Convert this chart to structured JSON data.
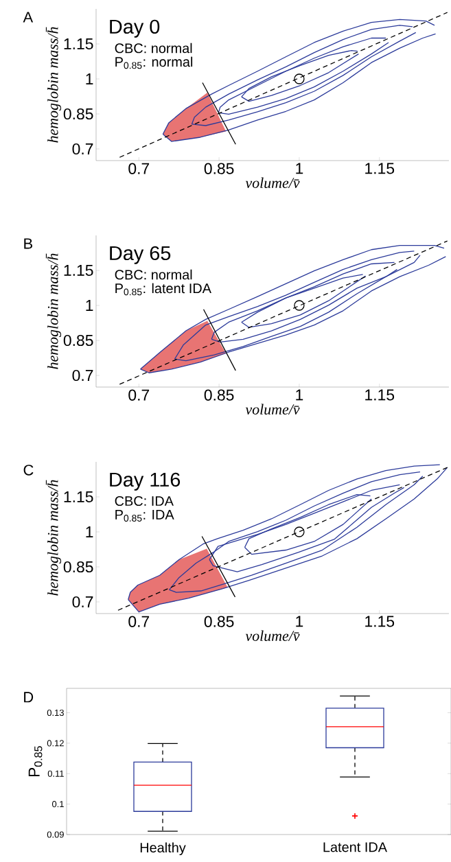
{
  "chart_data": [
    {
      "type": "line",
      "title": "Day 0",
      "xlabel": "volume/v̄",
      "ylabel": "hemoglobin mass/h̄",
      "annotations": [
        "A",
        "CBC: normal",
        "P$_{0.85}$: normal"
      ],
      "xlim": [
        0.62,
        1.28
      ],
      "ylim": [
        0.65,
        1.3
      ],
      "xticks": [
        0.7,
        0.85,
        1,
        1.15
      ],
      "yticks": [
        0.7,
        0.85,
        1,
        1.15
      ],
      "series": [
        {
          "type": "area",
          "color": "#e87473",
          "x": [
            0.745,
            0.761,
            0.815,
            0.863,
            0.828,
            0.788,
            0.756
          ],
          "values": [
            0.763,
            0.732,
            0.75,
            0.775,
            0.941,
            0.873,
            0.812
          ]
        },
        {
          "type": "line",
          "color": "#2b3a9a",
          "x": [
            0.745,
            0.761,
            0.815,
            0.868,
            0.922,
            0.975,
            1.028,
            1.082,
            1.135,
            1.188,
            1.231,
            1.255
          ],
          "values": [
            0.763,
            0.732,
            0.75,
            0.781,
            0.824,
            0.861,
            0.91,
            0.984,
            1.07,
            1.132,
            1.175,
            1.193
          ]
        },
        {
          "type": "line",
          "color": "#2b3a9a",
          "x": [
            0.745,
            0.756,
            0.788,
            0.836,
            0.868,
            0.922,
            0.975,
            1.028,
            1.082,
            1.135,
            1.188,
            1.237,
            1.253
          ],
          "values": [
            0.763,
            0.812,
            0.873,
            0.935,
            0.972,
            1.033,
            1.095,
            1.156,
            1.205,
            1.242,
            1.255,
            1.248,
            1.23
          ]
        },
        {
          "type": "line",
          "color": "#2b3a9a",
          "x": [
            0.799,
            0.825,
            0.868,
            0.922,
            0.975,
            1.028,
            1.082,
            1.135,
            1.188,
            1.218
          ],
          "values": [
            0.806,
            0.8,
            0.824,
            0.859,
            0.898,
            0.947,
            1.015,
            1.095,
            1.162,
            1.199
          ]
        },
        {
          "type": "line",
          "color": "#2b3a9a",
          "x": [
            0.799,
            0.804,
            0.825,
            0.868,
            0.922,
            0.975,
            1.028,
            1.082,
            1.135,
            1.188,
            1.212
          ],
          "values": [
            0.806,
            0.836,
            0.879,
            0.935,
            0.996,
            1.052,
            1.113,
            1.169,
            1.212,
            1.23,
            1.224
          ]
        },
        {
          "type": "line",
          "color": "#2b3a9a",
          "x": [
            0.849,
            0.868,
            0.922,
            0.975,
            1.028,
            1.082,
            1.135,
            1.167
          ],
          "values": [
            0.855,
            0.849,
            0.879,
            0.916,
            0.966,
            1.033,
            1.107,
            1.156
          ]
        },
        {
          "type": "line",
          "color": "#2b3a9a",
          "x": [
            0.849,
            0.852,
            0.868,
            0.922,
            0.975,
            1.028,
            1.082,
            1.135,
            1.162
          ],
          "values": [
            0.855,
            0.879,
            0.91,
            0.972,
            1.033,
            1.089,
            1.138,
            1.175,
            1.175
          ]
        },
        {
          "type": "line",
          "color": "#2b3a9a",
          "x": [
            0.892,
            0.906,
            0.948,
            1.002,
            1.055,
            1.111
          ],
          "values": [
            0.923,
            0.904,
            0.929,
            0.972,
            1.027,
            1.107
          ]
        },
        {
          "type": "line",
          "color": "#2b3a9a",
          "x": [
            0.892,
            0.906,
            0.948,
            1.002,
            1.055,
            1.098,
            1.109
          ],
          "values": [
            0.923,
            0.959,
            1.009,
            1.058,
            1.101,
            1.122,
            1.119
          ]
        },
        {
          "type": "line",
          "color": "#000000",
          "line_style": "dashed",
          "x": [
            0.664,
            1.277
          ],
          "values": [
            0.664,
            1.285
          ]
        },
        {
          "type": "line",
          "color": "#000000",
          "x": [
            0.819,
            0.881
          ],
          "values": [
            0.984,
            0.72
          ]
        },
        {
          "type": "scatter",
          "color": "#000000",
          "marker": "circle",
          "x": [
            1
          ],
          "values": [
            1
          ]
        }
      ]
    },
    {
      "type": "line",
      "title": "Day 65",
      "xlabel": "volume/v̄",
      "ylabel": "hemoglobin mass/h̄",
      "annotations": [
        "B",
        "CBC: normal",
        "P$_{0.85}$: latent IDA"
      ],
      "xlim": [
        0.62,
        1.28
      ],
      "ylim": [
        0.65,
        1.3
      ],
      "xticks": [
        0.7,
        0.85,
        1,
        1.15
      ],
      "yticks": [
        0.7,
        0.85,
        1,
        1.15
      ],
      "series": [
        {
          "type": "area",
          "color": "#e87473",
          "x": [
            0.703,
            0.719,
            0.761,
            0.815,
            0.863,
            0.828,
            0.788,
            0.74
          ],
          "values": [
            0.727,
            0.711,
            0.727,
            0.757,
            0.794,
            0.934,
            0.891,
            0.8
          ]
        },
        {
          "type": "line",
          "color": "#2b3a9a",
          "x": [
            0.703,
            0.719,
            0.761,
            0.815,
            0.868,
            0.922,
            0.975,
            1.028,
            1.082,
            1.135,
            1.188,
            1.242,
            1.274
          ],
          "values": [
            0.727,
            0.711,
            0.727,
            0.757,
            0.8,
            0.837,
            0.873,
            0.916,
            0.977,
            1.062,
            1.123,
            1.172,
            1.209
          ]
        },
        {
          "type": "line",
          "color": "#2b3a9a",
          "x": [
            0.703,
            0.74,
            0.788,
            0.825,
            0.868,
            0.922,
            0.975,
            1.028,
            1.082,
            1.135,
            1.188,
            1.253,
            1.271
          ],
          "values": [
            0.727,
            0.8,
            0.891,
            0.94,
            0.983,
            1.038,
            1.093,
            1.148,
            1.196,
            1.239,
            1.257,
            1.257,
            1.245
          ]
        },
        {
          "type": "line",
          "color": "#2b3a9a",
          "x": [
            0.767,
            0.788,
            0.841,
            0.895,
            0.948,
            1.002,
            1.055,
            1.108,
            1.162,
            1.215,
            1.226
          ],
          "values": [
            0.77,
            0.763,
            0.788,
            0.824,
            0.867,
            0.91,
            0.971,
            1.05,
            1.123,
            1.184,
            1.215
          ]
        },
        {
          "type": "line",
          "color": "#2b3a9a",
          "x": [
            0.767,
            0.783,
            0.825,
            0.868,
            0.922,
            0.975,
            1.028,
            1.082,
            1.135,
            1.188,
            1.215
          ],
          "values": [
            0.77,
            0.83,
            0.916,
            0.952,
            0.995,
            1.044,
            1.099,
            1.154,
            1.196,
            1.227,
            1.233
          ]
        },
        {
          "type": "line",
          "color": "#2b3a9a",
          "x": [
            0.836,
            0.852,
            0.895,
            0.948,
            1.002,
            1.055,
            1.108,
            1.162,
            1.183
          ],
          "values": [
            0.855,
            0.843,
            0.855,
            0.891,
            0.94,
            1.001,
            1.074,
            1.123,
            1.154
          ]
        },
        {
          "type": "line",
          "color": "#2b3a9a",
          "x": [
            0.836,
            0.841,
            0.868,
            0.922,
            0.975,
            1.028,
            1.082,
            1.135,
            1.178
          ],
          "values": [
            0.855,
            0.885,
            0.928,
            0.977,
            1.032,
            1.08,
            1.135,
            1.178,
            1.184
          ]
        },
        {
          "type": "line",
          "color": "#2b3a9a",
          "x": [
            0.892,
            0.906,
            0.948,
            1.002,
            1.055,
            1.124
          ],
          "values": [
            0.928,
            0.906,
            0.922,
            0.959,
            1.02,
            1.126
          ]
        },
        {
          "type": "line",
          "color": "#2b3a9a",
          "x": [
            0.892,
            0.922,
            0.975,
            1.028,
            1.082,
            1.119
          ],
          "values": [
            0.928,
            0.971,
            1.032,
            1.074,
            1.117,
            1.133
          ]
        },
        {
          "type": "line",
          "color": "#000000",
          "line_style": "dashed",
          "x": [
            0.664,
            1.277
          ],
          "values": [
            0.662,
            1.276
          ]
        },
        {
          "type": "line",
          "color": "#000000",
          "x": [
            0.821,
            0.881
          ],
          "values": [
            0.983,
            0.721
          ]
        },
        {
          "type": "scatter",
          "color": "#000000",
          "marker": "circle",
          "x": [
            1
          ],
          "values": [
            1
          ]
        }
      ]
    },
    {
      "type": "line",
      "title": "Day 116",
      "xlabel": "volume/v̄",
      "ylabel": "hemoglobin mass/h̄",
      "annotations": [
        "C",
        "CBC: IDA",
        "P$_{0.85}$: IDA"
      ],
      "xlim": [
        0.62,
        1.28
      ],
      "ylim": [
        0.65,
        1.3
      ],
      "xticks": [
        0.7,
        0.85,
        1,
        1.15
      ],
      "yticks": [
        0.7,
        0.85,
        1,
        1.15
      ],
      "series": [
        {
          "type": "area",
          "color": "#e87473",
          "x": [
            0.68,
            0.7,
            0.739,
            0.793,
            0.866,
            0.827,
            0.775,
            0.739,
            0.698,
            0.684
          ],
          "values": [
            0.71,
            0.657,
            0.69,
            0.716,
            0.762,
            0.928,
            0.881,
            0.814,
            0.772,
            0.741
          ]
        },
        {
          "type": "line",
          "color": "#2b3a9a",
          "x": [
            0.68,
            0.7,
            0.739,
            0.793,
            0.857,
            0.907,
            0.975,
            1.043,
            1.108,
            1.162,
            1.215,
            1.258,
            1.277
          ],
          "values": [
            0.71,
            0.657,
            0.69,
            0.716,
            0.757,
            0.793,
            0.845,
            0.897,
            0.971,
            1.056,
            1.141,
            1.227,
            1.276
          ]
        },
        {
          "type": "line",
          "color": "#2b3a9a",
          "x": [
            0.68,
            0.684,
            0.698,
            0.739,
            0.775,
            0.82,
            0.847,
            0.895,
            0.948,
            1.002,
            1.055,
            1.108,
            1.162,
            1.215,
            1.263
          ],
          "values": [
            0.71,
            0.741,
            0.772,
            0.814,
            0.881,
            0.948,
            0.971,
            1.007,
            1.056,
            1.117,
            1.178,
            1.227,
            1.263,
            1.282,
            1.288
          ]
        },
        {
          "type": "line",
          "color": "#2b3a9a",
          "x": [
            0.757,
            0.77,
            0.816,
            0.861,
            0.911,
            0.975,
            1.043,
            1.108,
            1.162,
            1.215,
            1.231
          ],
          "values": [
            0.752,
            0.741,
            0.747,
            0.778,
            0.814,
            0.866,
            0.922,
            1.02,
            1.117,
            1.202,
            1.239
          ]
        },
        {
          "type": "line",
          "color": "#2b3a9a",
          "x": [
            0.757,
            0.775,
            0.807,
            0.839,
            0.868,
            0.922,
            0.975,
            1.028,
            1.082,
            1.135,
            1.188,
            1.226
          ],
          "values": [
            0.752,
            0.804,
            0.866,
            0.912,
            0.959,
            1.001,
            1.05,
            1.111,
            1.166,
            1.215,
            1.245,
            1.257
          ]
        },
        {
          "type": "line",
          "color": "#2b3a9a",
          "x": [
            0.832,
            0.839,
            0.884,
            0.93,
            0.998,
            1.066,
            1.135,
            1.178,
            1.196
          ],
          "values": [
            0.881,
            0.855,
            0.829,
            0.86,
            0.912,
            0.969,
            1.105,
            1.166,
            1.19
          ]
        },
        {
          "type": "line",
          "color": "#2b3a9a",
          "x": [
            0.832,
            0.848,
            0.868,
            0.922,
            0.975,
            1.028,
            1.082,
            1.135,
            1.188
          ],
          "values": [
            0.881,
            0.938,
            0.952,
            0.989,
            1.032,
            1.08,
            1.129,
            1.178,
            1.202
          ]
        },
        {
          "type": "line",
          "color": "#2b3a9a",
          "x": [
            0.898,
            0.911,
            0.975,
            1.028,
            1.082,
            1.135
          ],
          "values": [
            0.934,
            0.904,
            0.922,
            0.959,
            1.032,
            1.141
          ]
        },
        {
          "type": "line",
          "color": "#2b3a9a",
          "x": [
            0.898,
            0.906,
            0.948,
            1.002,
            1.055,
            1.108,
            1.133
          ],
          "values": [
            0.934,
            0.971,
            1.013,
            1.062,
            1.117,
            1.16,
            1.154
          ]
        },
        {
          "type": "line",
          "color": "#000000",
          "line_style": "dashed",
          "x": [
            0.661,
            1.277
          ],
          "values": [
            0.664,
            1.276
          ]
        },
        {
          "type": "line",
          "color": "#000000",
          "x": [
            0.818,
            0.88
          ],
          "values": [
            0.981,
            0.721
          ]
        },
        {
          "type": "scatter",
          "color": "#000000",
          "marker": "circle",
          "x": [
            1
          ],
          "values": [
            1
          ]
        }
      ]
    },
    {
      "type": "box",
      "ylabel": "P$_{0.85}$",
      "annotations": [
        "D"
      ],
      "categories": [
        "Healthy",
        "Latent IDA"
      ],
      "color": "#2b3a9a",
      "ylim": [
        0.09,
        0.138
      ],
      "yticks": [
        0.09,
        0.1,
        0.11,
        0.12,
        0.13
      ],
      "boxes": [
        {
          "low": 0.0911,
          "q1": 0.0976,
          "median": 0.1062,
          "q3": 0.1138,
          "high": 0.1199
        },
        {
          "low": 0.1089,
          "q1": 0.1185,
          "median": 0.1254,
          "q3": 0.1315,
          "high": 0.1355,
          "outliers": [
            0.0961
          ]
        }
      ]
    }
  ]
}
